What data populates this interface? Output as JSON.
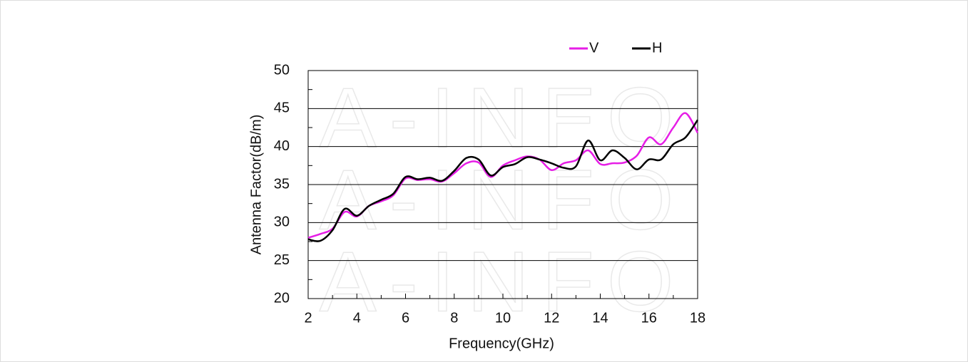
{
  "chart_data": {
    "type": "line",
    "watermark": "A-INFO",
    "x_label": "Frequency(GHz)",
    "y_label": "Antenna  Factor(dB/m)",
    "x": [
      2,
      2.5,
      3,
      3.5,
      4,
      4.5,
      5,
      5.5,
      6,
      6.5,
      7,
      7.5,
      8,
      8.5,
      9,
      9.5,
      10,
      10.5,
      11,
      11.5,
      12,
      12.5,
      13,
      13.5,
      14,
      14.5,
      15,
      15.5,
      16,
      16.5,
      17,
      17.5,
      18
    ],
    "series": [
      {
        "name": "V",
        "color": "#e61ee6",
        "values": [
          28.0,
          28.5,
          29.2,
          31.4,
          30.8,
          32.2,
          32.8,
          33.6,
          35.8,
          35.6,
          35.7,
          35.4,
          36.5,
          37.8,
          37.9,
          36.0,
          37.5,
          38.2,
          38.7,
          38.3,
          36.9,
          37.8,
          38.2,
          39.5,
          37.7,
          37.8,
          37.9,
          38.8,
          41.2,
          40.3,
          42.5,
          44.4,
          41.8
        ]
      },
      {
        "name": "H",
        "color": "#000000",
        "values": [
          27.8,
          27.6,
          29.0,
          31.8,
          30.9,
          32.2,
          33.0,
          33.8,
          36.0,
          35.7,
          35.9,
          35.5,
          36.8,
          38.5,
          38.3,
          36.2,
          37.3,
          37.7,
          38.6,
          38.3,
          37.8,
          37.2,
          37.4,
          40.8,
          38.2,
          39.5,
          38.5,
          37.0,
          38.3,
          38.3,
          40.3,
          41.2,
          43.5
        ]
      }
    ],
    "xlim": [
      2,
      18
    ],
    "xticks": [
      2,
      4,
      6,
      8,
      10,
      12,
      14,
      16,
      18
    ],
    "ylim": [
      20,
      50
    ],
    "yticks": [
      20,
      25,
      30,
      35,
      40,
      45,
      50
    ],
    "grid": true,
    "legend": "top"
  }
}
